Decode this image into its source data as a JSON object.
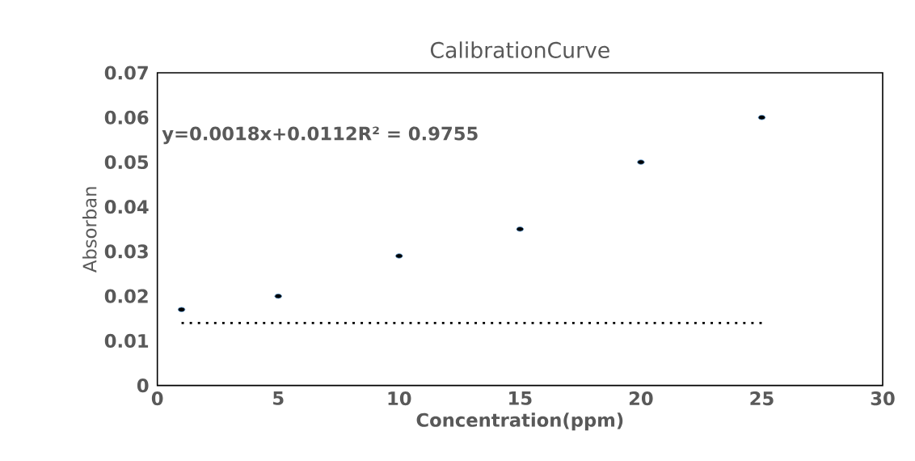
{
  "chart_data": {
    "type": "scatter",
    "title": "CalibrationCurve",
    "xlabel": "Concentration(ppm)",
    "ylabel": "Absorban",
    "annotations": [
      "y=0.0018x+0.0112R² = 0.9755"
    ],
    "x": [
      1,
      5,
      10,
      15,
      20,
      25
    ],
    "series": [
      {
        "color": "#000000",
        "marker": "circle",
        "values": [
          0.017,
          0.02,
          0.029,
          0.035,
          0.05,
          0.06
        ]
      },
      {
        "type": "line",
        "color": "#000000",
        "line_style": "dotted",
        "marker": "none",
        "x": [
          1,
          25
        ],
        "values": [
          0.014,
          0.014
        ]
      }
    ],
    "xlim": [
      0,
      30
    ],
    "ylim": [
      0,
      0.07
    ],
    "xticks": [
      0,
      5,
      10,
      15,
      20,
      25,
      30
    ],
    "yticks": [
      0,
      0.01,
      0.02,
      0.03,
      0.04,
      0.05,
      0.06,
      0.07
    ],
    "grid": false
  }
}
